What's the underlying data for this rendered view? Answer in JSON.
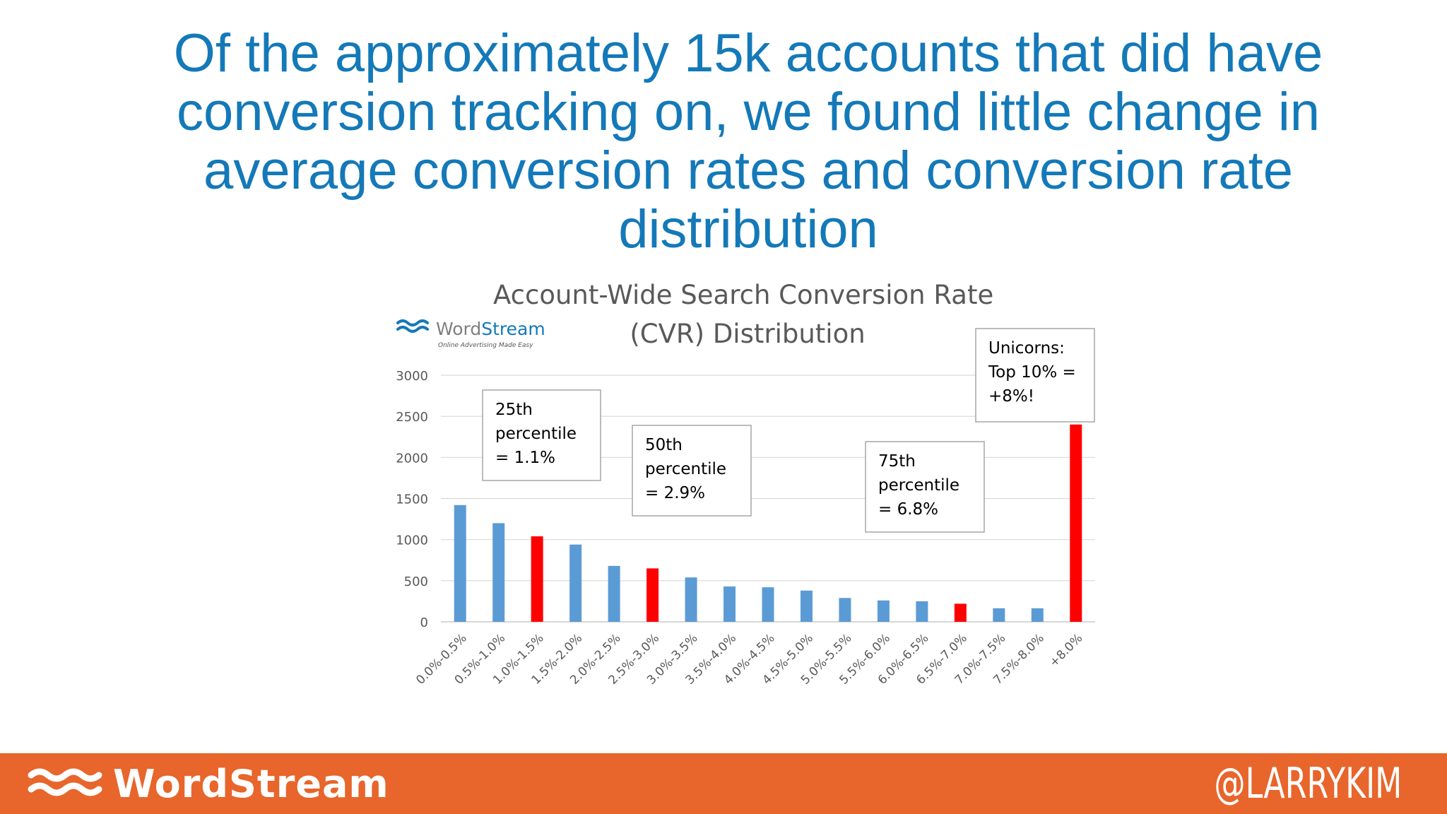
{
  "headline": [
    "Of the approximately 15k accounts that did have",
    "conversion tracking on, we found little change in",
    "average conversion rates and conversion rate",
    "distribution"
  ],
  "colors": {
    "headline": "#1479b8",
    "bar_normal": "#5b9bd5",
    "bar_highlight": "#ff0000",
    "footer": "#e8652b"
  },
  "chart_logo": {
    "name_part1": "Word",
    "name_part2": "Stream",
    "tagline": "Online Advertising Made Easy",
    "icon": "wave-icon"
  },
  "chart_data": {
    "type": "bar",
    "title": "Account-Wide Search Conversion Rate (CVR) Distribution",
    "title_lines": [
      "Account-Wide Search Conversion Rate",
      "(CVR) Distribution"
    ],
    "xlabel": "",
    "ylabel": "",
    "ylim": [
      0,
      3000
    ],
    "yticks": [
      0,
      500,
      1000,
      1500,
      2000,
      2500,
      3000
    ],
    "grid": true,
    "categories": [
      "0.0%-0.5%",
      "0.5%-1.0%",
      "1.0%-1.5%",
      "1.5%-2.0%",
      "2.0%-2.5%",
      "2.5%-3.0%",
      "3.0%-3.5%",
      "3.5%-4.0%",
      "4.0%-4.5%",
      "4.5%-5.0%",
      "5.0%-5.5%",
      "5.5%-6.0%",
      "6.0%-6.5%",
      "6.5%-7.0%",
      "7.0%-7.5%",
      "7.5%-8.0%",
      "+8.0%"
    ],
    "values": [
      1420,
      1200,
      1040,
      940,
      680,
      650,
      540,
      430,
      420,
      380,
      290,
      260,
      250,
      220,
      165,
      165,
      2400
    ],
    "highlighted": [
      false,
      false,
      true,
      false,
      false,
      true,
      false,
      false,
      false,
      false,
      false,
      false,
      false,
      true,
      false,
      false,
      true
    ],
    "annotations": [
      {
        "lines": [
          "25th",
          "percentile",
          "= 1.1%"
        ]
      },
      {
        "lines": [
          "50th",
          "percentile",
          "= 2.9%"
        ]
      },
      {
        "lines": [
          "75th",
          "percentile",
          "= 6.8%"
        ]
      },
      {
        "lines": [
          "Unicorns:",
          "Top 10% =",
          "+8%!"
        ]
      }
    ]
  },
  "footer": {
    "brand": "WordStream",
    "handle": "@LARRYKIM",
    "icon": "wave-logo-icon"
  }
}
